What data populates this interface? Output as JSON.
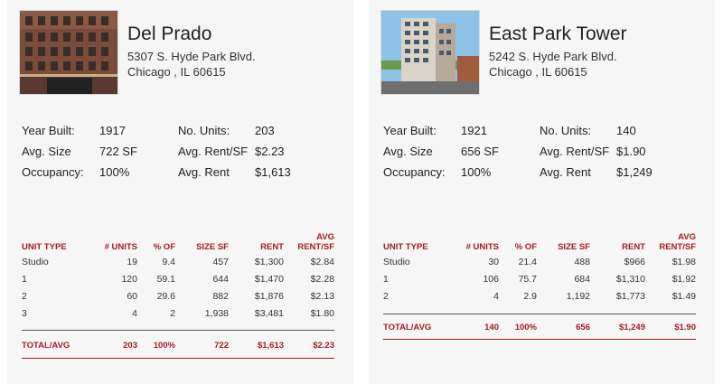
{
  "properties": [
    {
      "name": "Del Prado",
      "address_line1": "5307 S. Hyde Park Blvd.",
      "address_line2": "Chicago , IL 60615",
      "stats": {
        "year_built_label": "Year Built:",
        "year_built": "1917",
        "units_label": "No. Units:",
        "units": "203",
        "avg_size_label": "Avg. Size",
        "avg_size": "722 SF",
        "rent_sf_label": "Avg. Rent/SF",
        "rent_sf": "$2.23",
        "occupancy_label": "Occupancy:",
        "occupancy": "100%",
        "avg_rent_label": "Avg. Rent",
        "avg_rent": "$1,613"
      },
      "rows": [
        [
          "Studio",
          "19",
          "9.4",
          "457",
          "$1,300",
          "$2.84"
        ],
        [
          "1",
          "120",
          "59.1",
          "644",
          "$1,470",
          "$2.28"
        ],
        [
          "2",
          "60",
          "29.6",
          "882",
          "$1,876",
          "$2.13"
        ],
        [
          "3",
          "4",
          "2",
          "1,938",
          "$3,481",
          "$1.80"
        ]
      ],
      "total": [
        "TOTAL/AVG",
        "203",
        "100%",
        "722",
        "$1,613",
        "$2.23"
      ]
    },
    {
      "name": "East Park Tower",
      "address_line1": "5242 S. Hyde Park Blvd.",
      "address_line2": "Chicago , IL 60615",
      "stats": {
        "year_built_label": "Year Built:",
        "year_built": "1921",
        "units_label": "No. Units:",
        "units": "140",
        "avg_size_label": "Avg. Size",
        "avg_size": "656 SF",
        "rent_sf_label": "Avg. Rent/SF",
        "rent_sf": "$1.90",
        "occupancy_label": "Occupancy:",
        "occupancy": "100%",
        "avg_rent_label": "Avg. Rent",
        "avg_rent": "$1,249"
      },
      "rows": [
        [
          "Studio",
          "30",
          "21.4",
          "488",
          "$966",
          "$1.98"
        ],
        [
          "1",
          "106",
          "75.7",
          "684",
          "$1,310",
          "$1.92"
        ],
        [
          "2",
          "4",
          "2.9",
          "1,192",
          "$1,773",
          "$1.49"
        ]
      ],
      "total": [
        "TOTAL/AVG",
        "140",
        "100%",
        "656",
        "$1,249",
        "$1.90"
      ]
    }
  ],
  "table_headers": {
    "unit_type": "UNIT TYPE",
    "units": "# UNITS",
    "pct": "% OF",
    "size": "SIZE SF",
    "rent": "RENT",
    "avg_line1": "AVG",
    "avg_line2": "RENT/SF"
  },
  "colors": {
    "accent_red": "#a51c24",
    "card_bg": "#f6f6f6"
  }
}
